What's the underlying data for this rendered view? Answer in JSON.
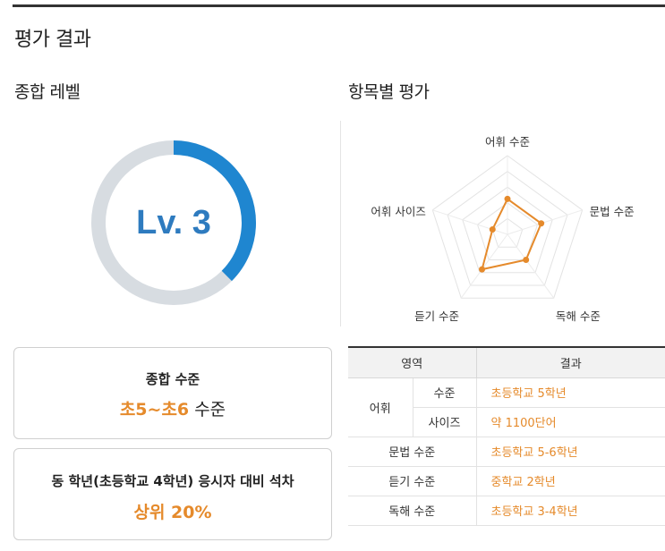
{
  "page_title": "평가 결과",
  "overall": {
    "section_title": "종합 레벨",
    "level_label": "Lv. 3",
    "level_progress": 0.375,
    "accent_color": "#1f86d0",
    "track_color": "#d7dce1"
  },
  "radar": {
    "section_title": "항목별 평가",
    "axes": [
      "어휘 수준",
      "문법 수준",
      "독해 수준",
      "듣기 수준",
      "어휘 사이즈"
    ],
    "scores": [
      0.45,
      0.45,
      0.4,
      0.55,
      0.2
    ],
    "levels": 5,
    "line_color": "#e58a2b"
  },
  "cards": {
    "overall_label": "종합 수준",
    "overall_value": "초5~초6",
    "overall_suffix": " 수준",
    "rank_label": "동 학년(초등학교 4학년) 응시자 대비 석차",
    "rank_value": "상위 20%"
  },
  "table": {
    "headers": [
      "영역",
      "결과"
    ],
    "rows": [
      {
        "area": "어휘",
        "sub": "수준",
        "result": "초등학교 5학년"
      },
      {
        "area": "",
        "sub": "사이즈",
        "result": "약 1100단어"
      },
      {
        "area": "문법 수준",
        "result": "초등학교 5-6학년"
      },
      {
        "area": "듣기 수준",
        "result": "중학교 2학년"
      },
      {
        "area": "독해 수준",
        "result": "초등학교 3-4학년"
      }
    ]
  }
}
